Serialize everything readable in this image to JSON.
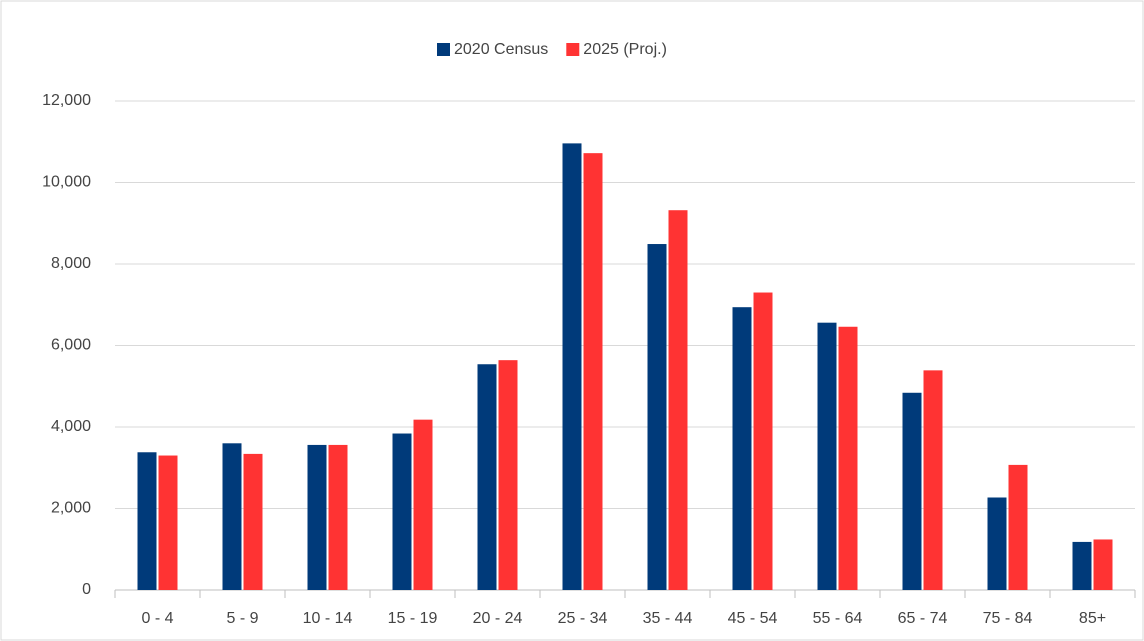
{
  "chart_data": {
    "type": "bar",
    "categories": [
      "0 - 4",
      "5 - 9",
      "10 - 14",
      "15 - 19",
      "20 - 24",
      "25 - 34",
      "35 - 44",
      "45 - 54",
      "55 - 64",
      "65 - 74",
      "75 - 84",
      "85+"
    ],
    "series": [
      {
        "name": "2020 Census",
        "color": "#003a7a",
        "values": [
          3380,
          3600,
          3560,
          3840,
          5540,
          10960,
          8490,
          6940,
          6560,
          4840,
          2270,
          1180
        ]
      },
      {
        "name": "2025 (Proj.)",
        "color": "#ff3333",
        "values": [
          3300,
          3340,
          3560,
          4180,
          5640,
          10720,
          9320,
          7300,
          6460,
          5390,
          3070,
          1240
        ]
      }
    ],
    "ylim": [
      0,
      12000
    ],
    "yticks": [
      0,
      {
        "value": 2000,
        "label": "2,000"
      },
      {
        "value": 4000,
        "label": "4,000"
      },
      {
        "value": 6000,
        "label": "6,000"
      },
      {
        "value": 8000,
        "label": "8,000"
      },
      {
        "value": 10000,
        "label": "10,000"
      },
      {
        "value": 12000,
        "label": "12,000"
      }
    ],
    "grid": true,
    "legend": "top"
  }
}
